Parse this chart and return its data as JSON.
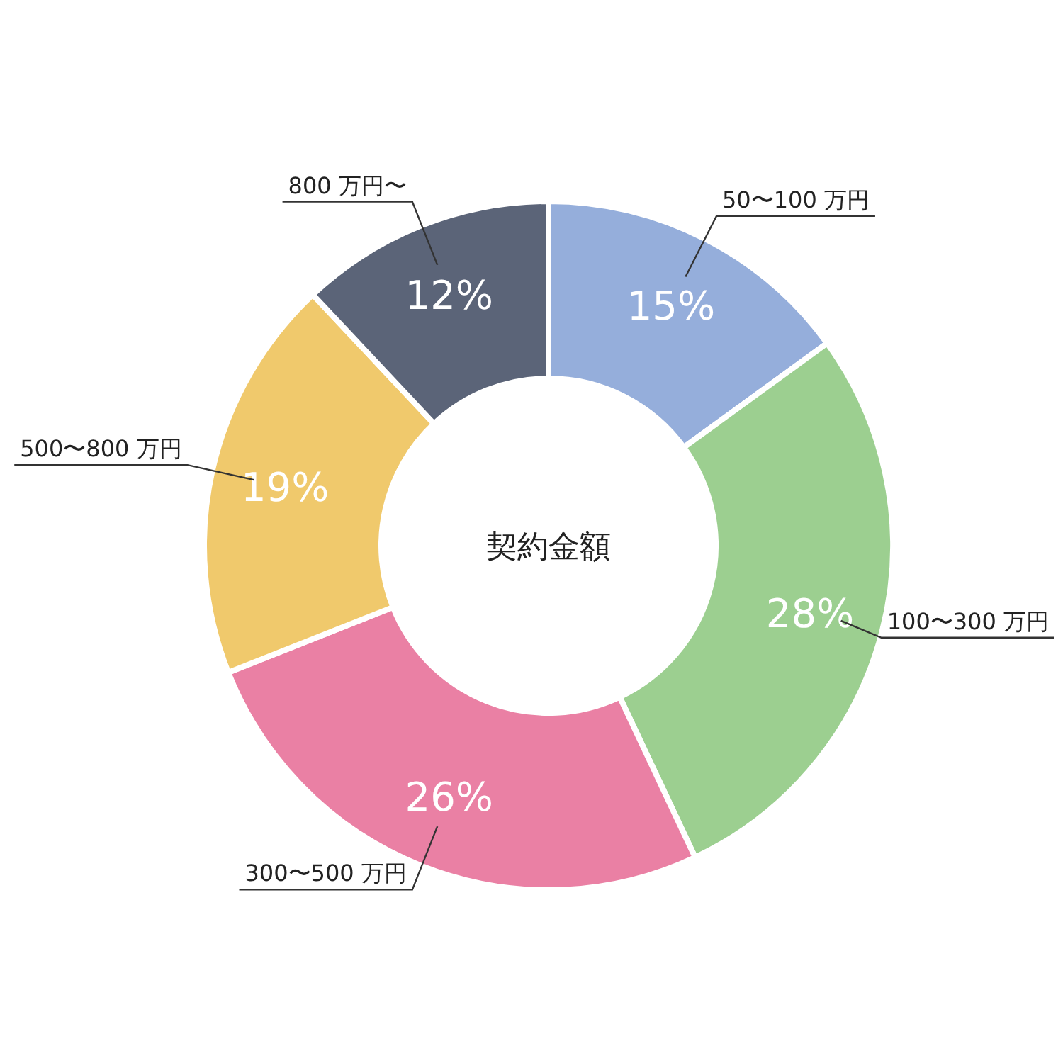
{
  "chart_data": {
    "type": "donut",
    "title": "契約金額",
    "categories": [
      "50〜100 万円",
      "100〜300 万円",
      "300〜500 万円",
      "500〜800 万円",
      "800 万円〜"
    ],
    "values": [
      15,
      28,
      26,
      19,
      12
    ],
    "colors": [
      "#95aedb",
      "#9ccf90",
      "#ea80a4",
      "#f0c96c",
      "#5b6478"
    ],
    "value_labels": [
      "15%",
      "28%",
      "26%",
      "19%",
      "12%"
    ]
  }
}
